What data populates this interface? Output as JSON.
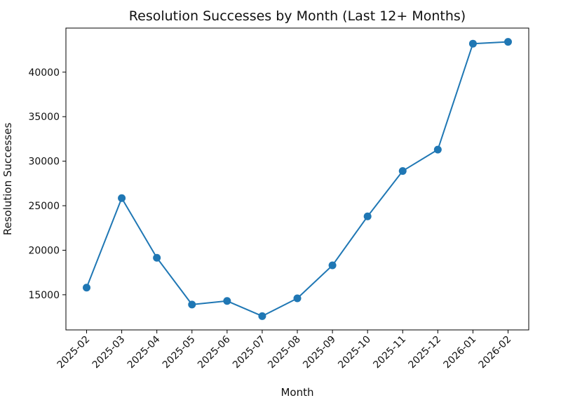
{
  "chart_data": {
    "type": "line",
    "title": "Resolution Successes by Month (Last 12+ Months)",
    "xlabel": "Month",
    "ylabel": "Resolution Successes",
    "categories": [
      "2025-02",
      "2025-03",
      "2025-04",
      "2025-05",
      "2025-06",
      "2025-07",
      "2025-08",
      "2025-09",
      "2025-10",
      "2025-11",
      "2025-12",
      "2026-01",
      "2026-02"
    ],
    "series": [
      {
        "values": [
          15800,
          25850,
          19150,
          13900,
          14300,
          12600,
          14600,
          18300,
          23800,
          28900,
          31300,
          43200,
          43400
        ]
      }
    ],
    "yticks": [
      15000,
      20000,
      25000,
      30000,
      35000,
      40000
    ],
    "ylim": [
      11050,
      44950
    ],
    "grid": false,
    "legend": "none",
    "line_color": "#1f77b4",
    "marker": "circle"
  }
}
